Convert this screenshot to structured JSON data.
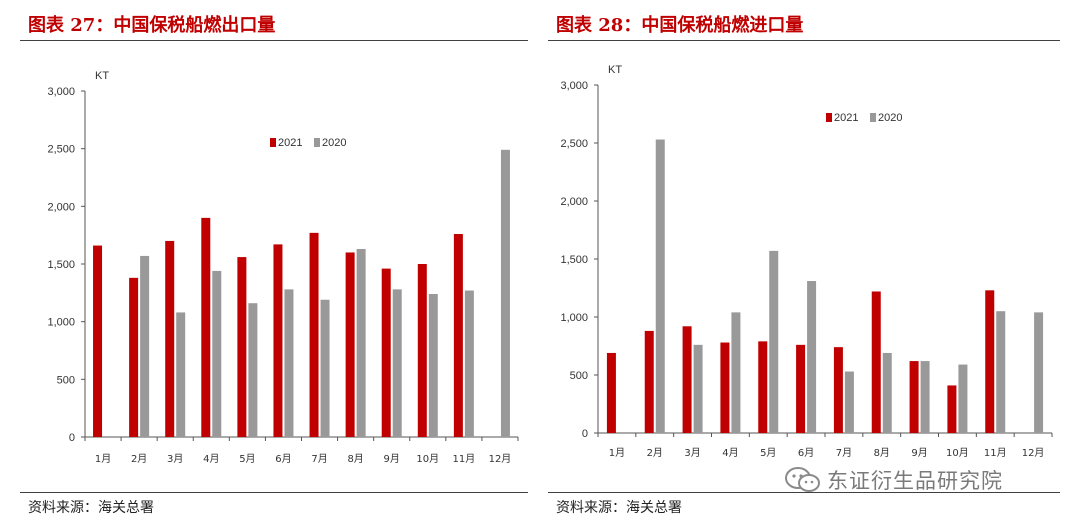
{
  "charts": [
    {
      "title": "图表 27：中国保税船燃出口量",
      "source": "资料来源：海关总署"
    },
    {
      "title": "图表 28：中国保税船燃进口量",
      "source": "资料来源：海关总署"
    }
  ],
  "watermark": "东证衍生品研究院",
  "colors": {
    "series_2021": "#c00000",
    "series_2020": "#999999",
    "title": "#c00000"
  },
  "chart_data": [
    {
      "type": "bar",
      "title": "图表 27：中国保税船燃出口量",
      "ylabel": "KT",
      "ylim": [
        0,
        3000
      ],
      "yticks": [
        "0",
        "500",
        "1,000",
        "1,500",
        "2,000",
        "2,500",
        "3,000"
      ],
      "yticks_values": [
        0,
        500,
        1000,
        1500,
        2000,
        2500,
        3000
      ],
      "categories": [
        "1月",
        "2月",
        "3月",
        "4月",
        "5月",
        "6月",
        "7月",
        "8月",
        "9月",
        "10月",
        "11月",
        "12月"
      ],
      "series": [
        {
          "name": "2021",
          "values": [
            1660,
            1380,
            1700,
            1900,
            1560,
            1670,
            1770,
            1600,
            1460,
            1500,
            1760,
            null
          ]
        },
        {
          "name": "2020",
          "values": [
            null,
            1570,
            1080,
            1440,
            1160,
            1280,
            1190,
            1630,
            1280,
            1240,
            1270,
            2490
          ]
        }
      ],
      "legend": "top-right",
      "grid": false
    },
    {
      "type": "bar",
      "title": "图表 28：中国保税船燃进口量",
      "ylabel": "KT",
      "ylim": [
        0,
        3000
      ],
      "yticks": [
        "0",
        "500",
        "1,000",
        "1,500",
        "2,000",
        "2,500",
        "3,000"
      ],
      "yticks_values": [
        0,
        500,
        1000,
        1500,
        2000,
        2500,
        3000
      ],
      "categories": [
        "1月",
        "2月",
        "3月",
        "4月",
        "5月",
        "6月",
        "7月",
        "8月",
        "9月",
        "10月",
        "11月",
        "12月"
      ],
      "series": [
        {
          "name": "2021",
          "values": [
            690,
            880,
            920,
            780,
            790,
            760,
            740,
            1220,
            620,
            410,
            1230,
            null
          ]
        },
        {
          "name": "2020",
          "values": [
            null,
            2530,
            760,
            1040,
            1570,
            1310,
            530,
            690,
            620,
            590,
            1050,
            1040
          ]
        }
      ],
      "legend": "top-right",
      "grid": false
    }
  ]
}
